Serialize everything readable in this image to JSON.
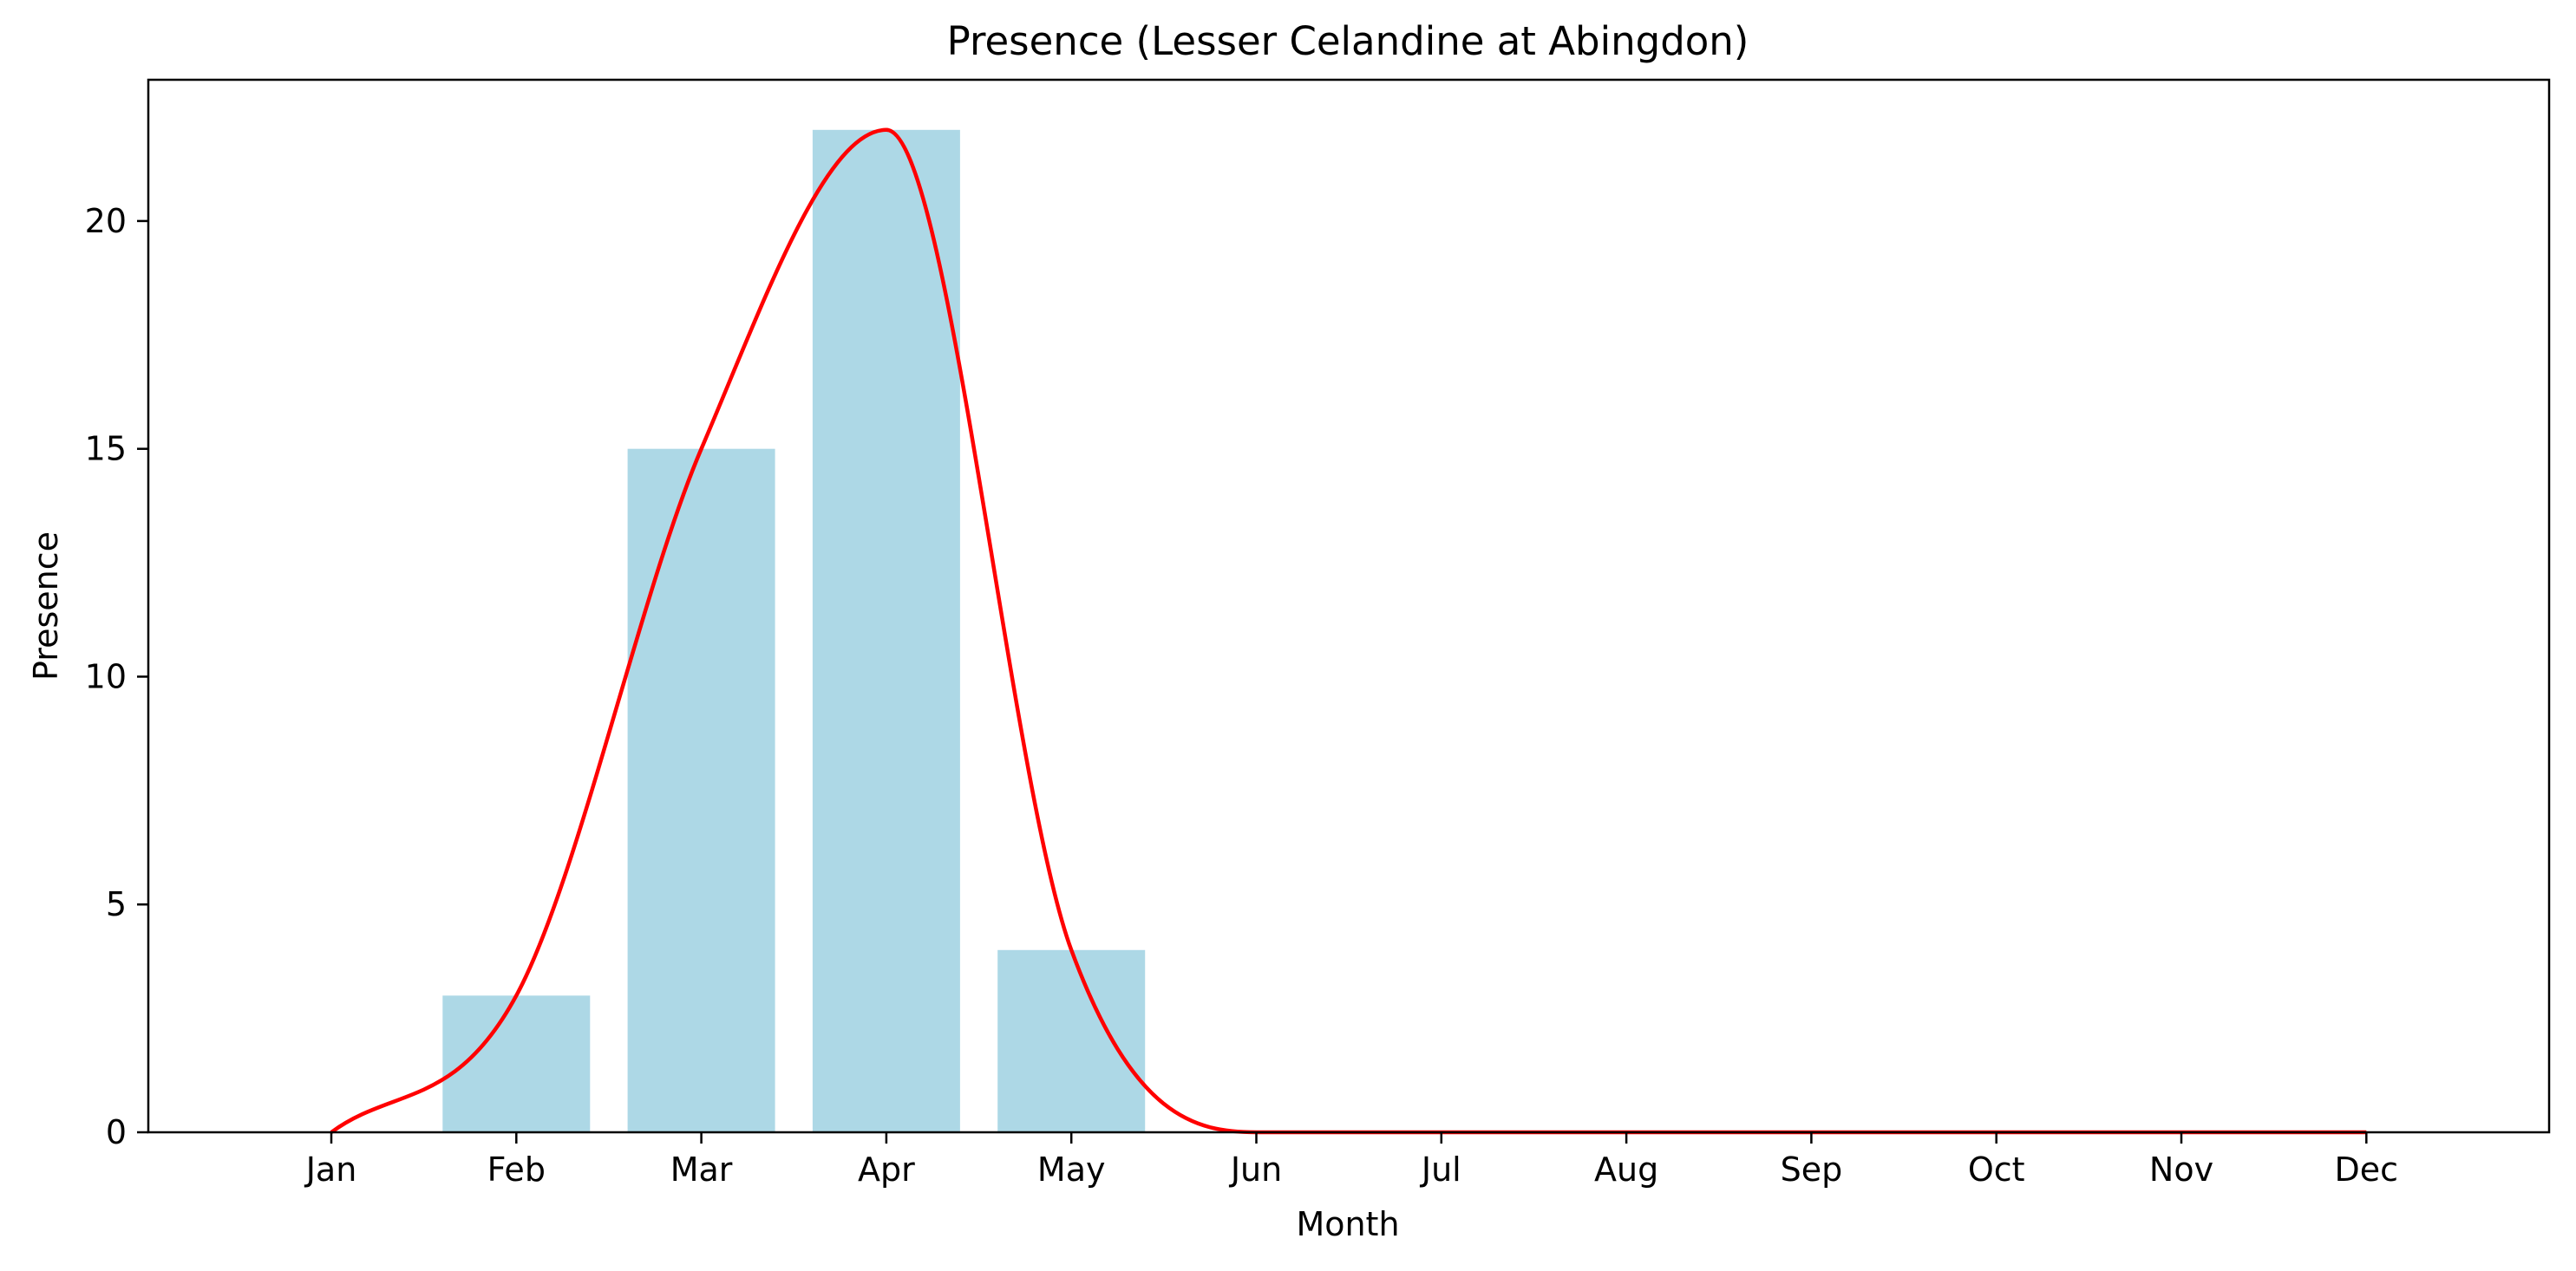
{
  "chart_data": {
    "type": "bar",
    "title": "Presence (Lesser Celandine at Abingdon)",
    "xlabel": "Month",
    "ylabel": "Presence",
    "categories": [
      "Jan",
      "Feb",
      "Mar",
      "Apr",
      "May",
      "Jun",
      "Jul",
      "Aug",
      "Sep",
      "Oct",
      "Nov",
      "Dec"
    ],
    "values": [
      0,
      3,
      15,
      22,
      4,
      0,
      0,
      0,
      0,
      0,
      0,
      0
    ],
    "overlay": {
      "type": "line",
      "style": "smooth",
      "values": [
        0,
        3,
        15,
        22,
        4,
        0,
        0,
        0,
        0,
        0,
        0,
        0
      ]
    },
    "ylim": [
      0,
      23.1
    ],
    "yticks": [
      0,
      5,
      10,
      15,
      20
    ],
    "grid": false,
    "legend": "none",
    "colors": {
      "bar": "#add8e6",
      "line": "#ff0000",
      "axis": "#000000"
    }
  }
}
